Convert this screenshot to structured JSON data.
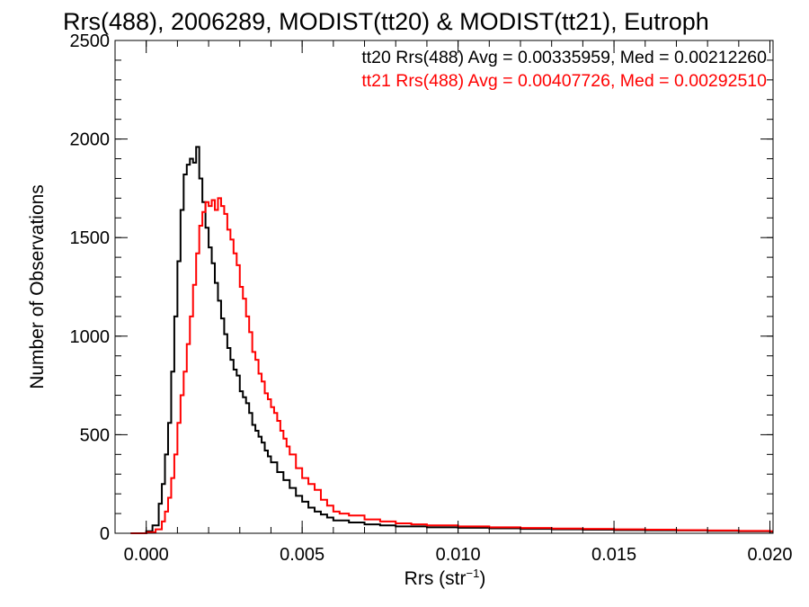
{
  "chart_data": {
    "type": "line",
    "style": "histogram-step",
    "title": "Rrs(488), 2006289, MODIST(tt20) & MODIST(tt21), Eutroph",
    "xlabel_base": "Rrs (str",
    "xlabel_sup": "−1",
    "xlabel_end": ")",
    "ylabel": "Number of Observations",
    "xlim": [
      -0.001,
      0.0201
    ],
    "ylim": [
      0,
      2500
    ],
    "xticks": [
      0.0,
      0.005,
      0.01,
      0.015,
      0.02
    ],
    "xtick_labels": [
      "0.000",
      "0.005",
      "0.010",
      "0.015",
      "0.020"
    ],
    "yticks": [
      0,
      500,
      1000,
      1500,
      2000,
      2500
    ],
    "ytick_labels": [
      "0",
      "500",
      "1000",
      "1500",
      "2000",
      "2500"
    ],
    "grid": false,
    "annotations": [
      {
        "text": "tt20 Rrs(488) Avg = 0.00335959, Med = 0.00212260",
        "color": "#000000"
      },
      {
        "text": "tt21 Rrs(488) Avg = 0.00407726, Med = 0.00292510",
        "color": "#ff0000"
      }
    ],
    "series": [
      {
        "color": "#000000",
        "x": [
          -0.0005,
          0.0,
          0.0002,
          0.0004,
          0.0005,
          0.0006,
          0.0007,
          0.0008,
          0.0009,
          0.001,
          0.0011,
          0.0012,
          0.0013,
          0.0014,
          0.0015,
          0.0016,
          0.0017,
          0.0018,
          0.0019,
          0.002,
          0.0021,
          0.0022,
          0.0023,
          0.0024,
          0.0025,
          0.0026,
          0.0027,
          0.0028,
          0.0029,
          0.003,
          0.0031,
          0.0032,
          0.0033,
          0.0034,
          0.0035,
          0.0036,
          0.0037,
          0.0038,
          0.0039,
          0.004,
          0.0042,
          0.0044,
          0.0046,
          0.0048,
          0.005,
          0.0052,
          0.0054,
          0.0056,
          0.0058,
          0.006,
          0.0065,
          0.007,
          0.0075,
          0.008,
          0.009,
          0.01,
          0.011,
          0.012,
          0.013,
          0.014,
          0.015,
          0.016,
          0.017,
          0.018,
          0.019,
          0.02
        ],
        "values": [
          0,
          10,
          40,
          150,
          250,
          400,
          560,
          820,
          1100,
          1380,
          1640,
          1820,
          1870,
          1900,
          1880,
          1960,
          1800,
          1680,
          1550,
          1450,
          1370,
          1270,
          1180,
          1090,
          1010,
          940,
          880,
          830,
          800,
          720,
          690,
          660,
          610,
          550,
          520,
          490,
          460,
          420,
          390,
          360,
          310,
          270,
          230,
          190,
          160,
          130,
          110,
          95,
          80,
          65,
          55,
          45,
          40,
          35,
          30,
          28,
          25,
          22,
          20,
          18,
          16,
          15,
          14,
          12,
          10,
          8
        ]
      },
      {
        "color": "#ff0000",
        "x": [
          -0.0005,
          0.0,
          0.0003,
          0.0005,
          0.0006,
          0.0007,
          0.0008,
          0.0009,
          0.001,
          0.0011,
          0.0012,
          0.0013,
          0.0014,
          0.0015,
          0.0016,
          0.0017,
          0.0018,
          0.0019,
          0.002,
          0.0021,
          0.0022,
          0.0023,
          0.0024,
          0.0025,
          0.0026,
          0.0027,
          0.0028,
          0.0029,
          0.003,
          0.0031,
          0.0032,
          0.0033,
          0.0034,
          0.0035,
          0.0036,
          0.0037,
          0.0038,
          0.0039,
          0.004,
          0.0041,
          0.0042,
          0.0043,
          0.0044,
          0.0045,
          0.0046,
          0.0048,
          0.005,
          0.0052,
          0.0054,
          0.0056,
          0.0058,
          0.006,
          0.0062,
          0.0065,
          0.007,
          0.0075,
          0.008,
          0.0085,
          0.009,
          0.01,
          0.011,
          0.012,
          0.013,
          0.014,
          0.015,
          0.016,
          0.017,
          0.018,
          0.019,
          0.02
        ],
        "values": [
          0,
          5,
          20,
          60,
          110,
          180,
          280,
          400,
          560,
          700,
          820,
          960,
          1100,
          1260,
          1420,
          1560,
          1630,
          1680,
          1660,
          1690,
          1640,
          1700,
          1660,
          1620,
          1540,
          1490,
          1420,
          1360,
          1250,
          1190,
          1100,
          1020,
          920,
          880,
          810,
          770,
          710,
          680,
          640,
          610,
          570,
          520,
          480,
          440,
          400,
          330,
          280,
          250,
          220,
          170,
          140,
          110,
          100,
          90,
          70,
          60,
          50,
          45,
          40,
          35,
          30,
          27,
          24,
          22,
          20,
          18,
          16,
          14,
          12,
          10
        ]
      }
    ]
  }
}
